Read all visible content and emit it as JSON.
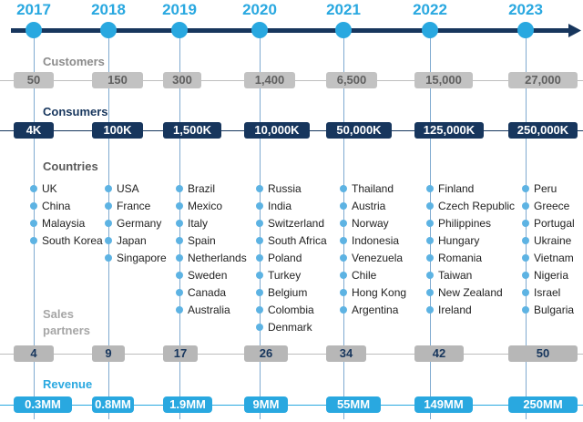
{
  "timeline": {
    "years": [
      "2017",
      "2018",
      "2019",
      "2020",
      "2021",
      "2022",
      "2023"
    ],
    "colors": {
      "accent": "#29a8e0",
      "arrow": "#17365d"
    }
  },
  "sections": {
    "customers": "Customers",
    "consumers": "Consumers",
    "countries": "Countries",
    "sales_partners_line1": "Sales",
    "sales_partners_line2": "partners",
    "revenue": "Revenue"
  },
  "customers": [
    "50",
    "150",
    "300",
    "1,400",
    "6,500",
    "15,000",
    "27,000"
  ],
  "consumers": [
    "4K",
    "100K",
    "1,500K",
    "10,000K",
    "50,000K",
    "125,000K",
    "250,000K"
  ],
  "countries": [
    [
      "UK",
      "China",
      "Malaysia",
      "South Korea"
    ],
    [
      "USA",
      "France",
      "Germany",
      "Japan",
      "Singapore"
    ],
    [
      "Brazil",
      "Mexico",
      "Italy",
      "Spain",
      "Netherlands",
      "Sweden",
      "Canada",
      "Australia"
    ],
    [
      "Russia",
      "India",
      "Switzerland",
      "South Africa",
      "Poland",
      "Turkey",
      "Belgium",
      "Colombia",
      "Denmark"
    ],
    [
      "Thailand",
      "Austria",
      "Norway",
      "Indonesia",
      "Venezuela",
      "Chile",
      "Hong Kong",
      "Argentina"
    ],
    [
      "Finland",
      "Czech Republic",
      "Philippines",
      "Hungary",
      "Romania",
      "Taiwan",
      "New Zealand",
      "Ireland"
    ],
    [
      "Peru",
      "Greece",
      "Portugal",
      "Ukraine",
      "Vietnam",
      "Nigeria",
      "Israel",
      "Bulgaria"
    ]
  ],
  "sales_partners": [
    "4",
    "9",
    "17",
    "26",
    "34",
    "42",
    "50"
  ],
  "revenue": [
    "0.3MM",
    "0.8MM",
    "1.9MM",
    "9MM",
    "55MM",
    "149MM",
    "250MM"
  ]
}
